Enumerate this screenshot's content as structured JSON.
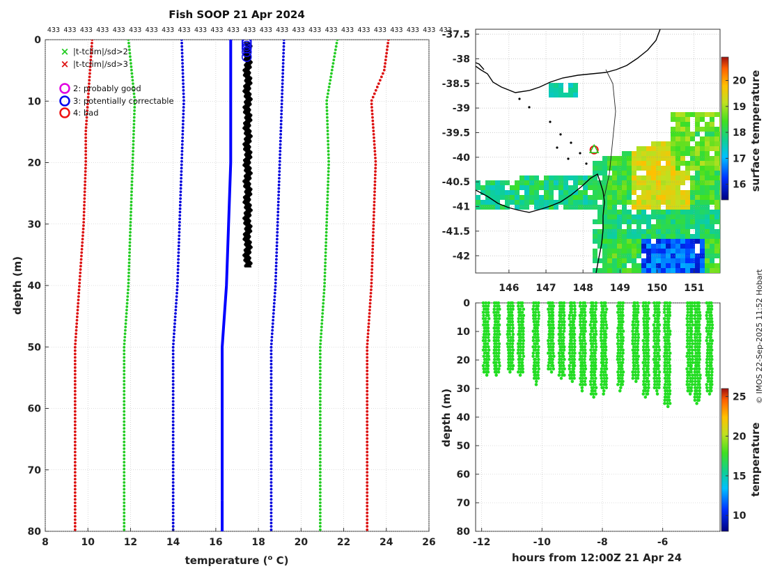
{
  "chart_data": [
    {
      "type": "line",
      "title": "Fish SOOP 21 Apr 2024",
      "xlabel": "temperature (",
      "xlabel_sup": "o",
      "xlabel_unit": " C)",
      "ylabel": "depth (m)",
      "xlim": [
        8,
        26
      ],
      "ylim": [
        80,
        0
      ],
      "xticks": [
        8,
        10,
        12,
        14,
        16,
        18,
        20,
        22,
        24,
        26
      ],
      "yticks": [
        0,
        10,
        20,
        30,
        40,
        50,
        60,
        70,
        80
      ],
      "top_counts_label": "433",
      "top_counts_n": 25,
      "legend": {
        "cross_green": "|t-tclim|/sd>2",
        "cross_red": "|t-tclim|/sd>3",
        "circle_magenta": "2: probably good",
        "circle_blue": "3: potentially correctable",
        "circle_red": "4: bad"
      },
      "series": [
        {
          "name": "clim -3sd",
          "color": "#dd1111",
          "depth": [
            0,
            5,
            10,
            15,
            20,
            30,
            40,
            50,
            80
          ],
          "temp": [
            10.2,
            10.1,
            10.0,
            9.9,
            9.9,
            9.8,
            9.6,
            9.4,
            9.4
          ]
        },
        {
          "name": "clim -2sd",
          "color": "#22cc22",
          "depth": [
            0,
            10,
            20,
            30,
            40,
            50,
            80
          ],
          "temp": [
            11.9,
            12.2,
            12.1,
            12.0,
            11.9,
            11.7,
            11.7
          ]
        },
        {
          "name": "clim -1sd",
          "color": "#0000dd",
          "depth": [
            0,
            10,
            20,
            30,
            40,
            50,
            80
          ],
          "temp": [
            14.4,
            14.5,
            14.4,
            14.3,
            14.2,
            14.0,
            14.0
          ]
        },
        {
          "name": "clim mean",
          "color": "#0000ff",
          "depth": [
            0,
            10,
            20,
            30,
            40,
            50,
            75
          ],
          "temp": [
            16.7,
            16.7,
            16.7,
            16.6,
            16.5,
            16.3,
            16.3
          ]
        },
        {
          "name": "clim +1sd",
          "color": "#0000dd",
          "depth": [
            0,
            10,
            20,
            30,
            40,
            50,
            80
          ],
          "temp": [
            19.2,
            19.1,
            19.0,
            18.9,
            18.8,
            18.6,
            18.6
          ]
        },
        {
          "name": "clim +2sd",
          "color": "#22cc22",
          "depth": [
            0,
            10,
            20,
            30,
            40,
            50,
            80
          ],
          "temp": [
            21.7,
            21.2,
            21.3,
            21.2,
            21.1,
            20.9,
            20.9
          ]
        },
        {
          "name": "clim +3sd",
          "color": "#dd1111",
          "depth": [
            0,
            5,
            10,
            20,
            30,
            40,
            50,
            80
          ],
          "temp": [
            24.1,
            23.9,
            23.3,
            23.5,
            23.4,
            23.3,
            23.1,
            23.1
          ]
        }
      ],
      "observed": {
        "name": "observed",
        "color": "#000000",
        "depth_max": 37,
        "temp_min": 17.4,
        "temp_max": 17.6
      },
      "flag_circle_temp": 17.45,
      "flag_circle_depths": [
        0.3,
        0.6,
        1.0,
        1.4,
        2.0,
        2.8
      ]
    },
    {
      "type": "heatmap",
      "title": "",
      "xticks": [
        "146",
        "147",
        "148",
        "149",
        "150",
        "151"
      ],
      "yticks": [
        "-37.5",
        "-38",
        "-38.5",
        "-39",
        "-39.5",
        "-40",
        "-40.5",
        "-41",
        "-41.5",
        "-42"
      ],
      "xlim": [
        145.1,
        151.7
      ],
      "ylim": [
        -42.35,
        -37.4
      ],
      "colorbar_label": "surface temperature",
      "colorbar_ticks": [
        "20",
        "19",
        "18",
        "17",
        "16"
      ],
      "colorbar_range": [
        15.4,
        20.9
      ],
      "profile_location": [
        148.3,
        -39.85
      ]
    },
    {
      "type": "scatter",
      "xlabel": "hours from 12:00Z 21 Apr 24",
      "ylabel": "depth (m)",
      "xlim": [
        -12.2,
        -4.1
      ],
      "ylim": [
        80,
        0
      ],
      "xticks": [
        -12,
        -10,
        -8,
        -6
      ],
      "yticks": [
        0,
        10,
        20,
        30,
        40,
        50,
        60,
        70,
        80
      ],
      "colorbar_label": "temperature",
      "colorbar_ticks": [
        "25",
        "20",
        "15",
        "10"
      ],
      "colorbar_range": [
        8,
        26
      ],
      "point_color": "#22dd22",
      "casts": [
        {
          "hours": -11.85,
          "max_depth": 26
        },
        {
          "hours": -11.5,
          "max_depth": 26
        },
        {
          "hours": -11.05,
          "max_depth": 25
        },
        {
          "hours": -10.7,
          "max_depth": 26
        },
        {
          "hours": -10.2,
          "max_depth": 29
        },
        {
          "hours": -9.7,
          "max_depth": 25
        },
        {
          "hours": -9.35,
          "max_depth": 27
        },
        {
          "hours": -9.0,
          "max_depth": 28
        },
        {
          "hours": -8.65,
          "max_depth": 31
        },
        {
          "hours": -8.3,
          "max_depth": 34
        },
        {
          "hours": -7.95,
          "max_depth": 32
        },
        {
          "hours": -7.4,
          "max_depth": 31
        },
        {
          "hours": -6.9,
          "max_depth": 28
        },
        {
          "hours": -6.55,
          "max_depth": 34
        },
        {
          "hours": -6.2,
          "max_depth": 32
        },
        {
          "hours": -5.85,
          "max_depth": 37
        },
        {
          "hours": -5.1,
          "max_depth": 33
        },
        {
          "hours": -4.85,
          "max_depth": 36
        },
        {
          "hours": -4.45,
          "max_depth": 33
        }
      ]
    }
  ],
  "footer": {
    "credit": "© IMOS 22-Sep-2025 11:52 Hobart"
  }
}
